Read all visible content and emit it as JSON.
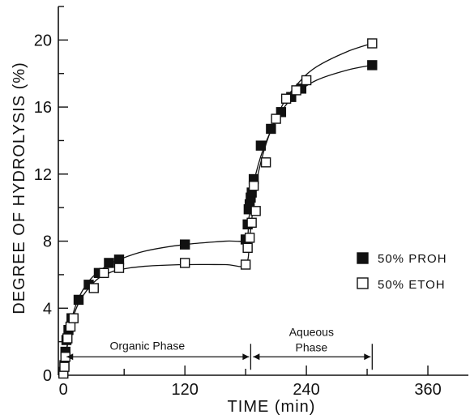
{
  "chart_data": {
    "type": "scatter",
    "xlabel": "TIME (min)",
    "ylabel": "DEGREE OF HYDROLYSIS (%)",
    "xlim": [
      -5,
      400
    ],
    "ylim": [
      0,
      22
    ],
    "x_ticks": [
      0,
      120,
      240,
      360
    ],
    "y_ticks": [
      0,
      4,
      8,
      12,
      16,
      20
    ],
    "grid": false,
    "legend_position": "right",
    "series": [
      {
        "name": "50% PROH",
        "marker": "filled-square",
        "x": [
          0,
          1,
          2,
          3,
          5,
          8,
          15,
          25,
          35,
          45,
          55,
          120,
          180,
          182,
          183,
          184,
          185,
          186,
          188,
          195,
          205,
          215,
          225,
          235,
          305
        ],
        "y": [
          0.2,
          0.6,
          1.4,
          2.1,
          2.7,
          3.4,
          4.5,
          5.4,
          6.1,
          6.7,
          6.9,
          7.8,
          8.1,
          9.0,
          9.9,
          10.2,
          10.6,
          10.9,
          11.7,
          13.7,
          14.7,
          15.7,
          16.6,
          17.1,
          18.5
        ]
      },
      {
        "name": "50% ETOH",
        "marker": "open-square",
        "x": [
          0,
          1,
          2,
          4,
          7,
          10,
          30,
          40,
          55,
          120,
          180,
          182,
          184,
          186,
          188,
          190,
          200,
          210,
          220,
          230,
          240,
          305
        ],
        "y": [
          0.1,
          0.5,
          1.1,
          2.2,
          2.9,
          3.4,
          5.2,
          6.1,
          6.4,
          6.7,
          6.6,
          7.6,
          8.2,
          9.1,
          11.3,
          9.8,
          12.7,
          15.3,
          16.5,
          17.0,
          17.6,
          19.8
        ]
      }
    ],
    "fit_curves": [
      {
        "series": "50% PROH",
        "x": [
          0,
          3,
          8,
          15,
          25,
          35,
          45,
          55,
          80,
          120,
          160,
          180,
          183,
          186,
          190,
          200,
          215,
          230,
          250,
          280,
          305
        ],
        "y": [
          0,
          1.5,
          3.3,
          4.6,
          5.6,
          6.2,
          6.6,
          6.9,
          7.4,
          7.8,
          8.0,
          8.1,
          9.3,
          10.5,
          12.0,
          13.9,
          15.7,
          16.8,
          17.6,
          18.2,
          18.5
        ]
      },
      {
        "series": "50% ETOH",
        "x": [
          0,
          3,
          8,
          15,
          25,
          35,
          45,
          55,
          80,
          120,
          160,
          180,
          184,
          188,
          193,
          203,
          218,
          233,
          250,
          280,
          305
        ],
        "y": [
          0,
          1.4,
          3.1,
          4.3,
          5.2,
          5.8,
          6.1,
          6.3,
          6.5,
          6.6,
          6.6,
          6.6,
          8.2,
          10.3,
          12.2,
          14.3,
          16.3,
          17.5,
          18.4,
          19.3,
          19.8
        ]
      }
    ],
    "annotations": [
      {
        "text": "Organic Phase",
        "x_start": 0,
        "x_end": 185
      },
      {
        "text": "Aqueous",
        "x_start": 185,
        "x_end": 305
      },
      {
        "text": "Phase",
        "x_start": 185,
        "x_end": 305
      }
    ]
  },
  "colors": {
    "axis": "#111111",
    "filled_marker": "#111111",
    "open_marker_fill": "#ffffff",
    "background": "#ffffff"
  }
}
